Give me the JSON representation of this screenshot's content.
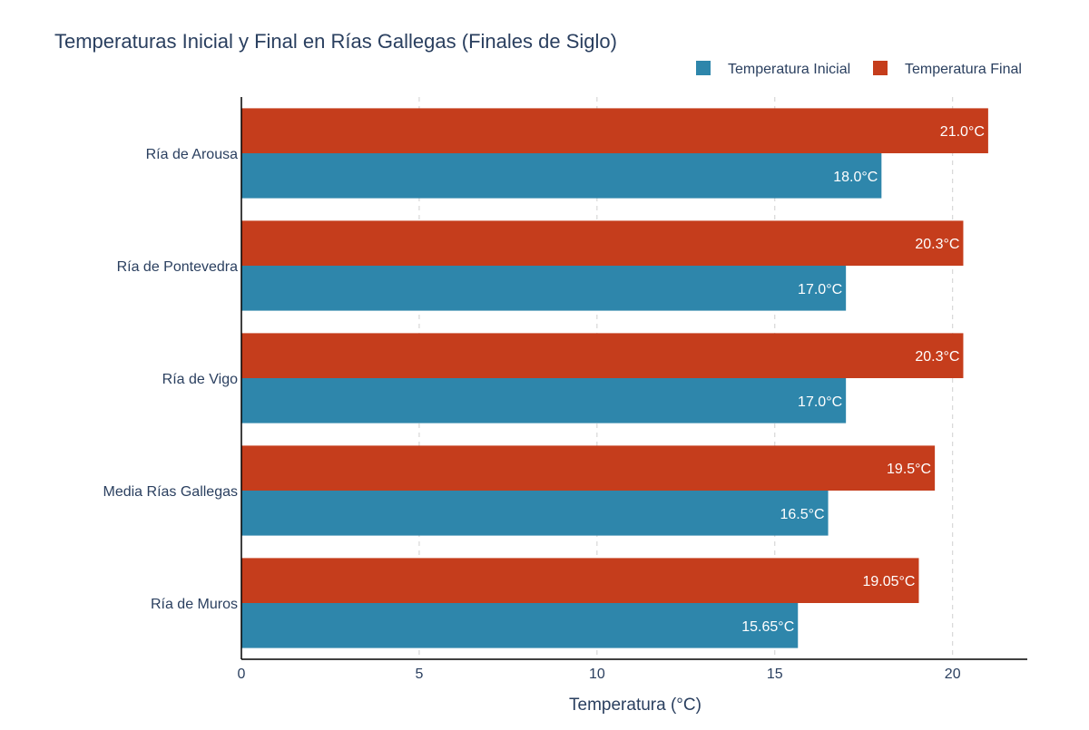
{
  "chart_data": {
    "type": "bar",
    "orientation": "horizontal",
    "title": "Temperaturas Inicial y Final en Rías Gallegas (Finales de Siglo)",
    "xlabel": "Temperatura (°C)",
    "ylabel": "",
    "xlim": [
      0,
      22.1
    ],
    "xticks": [
      0,
      5,
      10,
      15,
      20
    ],
    "grid": true,
    "legend_position": "top-right",
    "categories": [
      "Ría de Arousa",
      "Ría de Pontevedra",
      "Ría de Vigo",
      "Media Rías Gallegas",
      "Ría de Muros"
    ],
    "series": [
      {
        "name": "Temperatura Final",
        "color": "#c53d1c",
        "values": [
          21.0,
          20.3,
          20.3,
          19.5,
          19.05
        ],
        "labels": [
          "21.0°C",
          "20.3°C",
          "20.3°C",
          "19.5°C",
          "19.05°C"
        ]
      },
      {
        "name": "Temperatura Inicial",
        "color": "#2e86ab",
        "values": [
          18.0,
          17.0,
          17.0,
          16.5,
          15.65
        ],
        "labels": [
          "18.0°C",
          "17.0°C",
          "17.0°C",
          "16.5°C",
          "15.65°C"
        ]
      }
    ],
    "legend_order": [
      "Temperatura Inicial",
      "Temperatura Final"
    ]
  }
}
